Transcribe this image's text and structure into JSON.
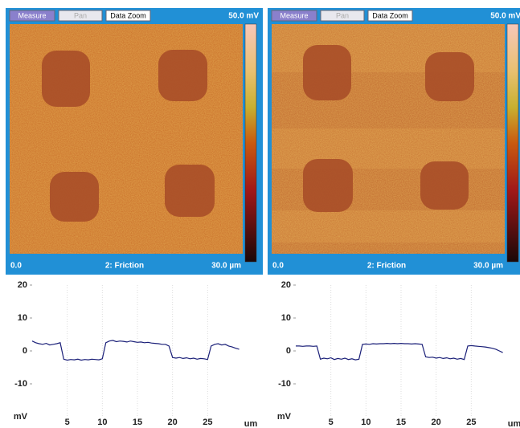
{
  "panels": [
    {
      "buttons": [
        "Measure",
        "Pan",
        "Data Zoom"
      ],
      "scale_max": "50.0 mV",
      "footer_left": "0.0",
      "footer_center": "2: Friction",
      "footer_right": "30.0 µm"
    },
    {
      "buttons": [
        "Measure",
        "Pan",
        "Data Zoom"
      ],
      "scale_max": "50.0 mV",
      "footer_left": "0.0",
      "footer_center": "2: Friction",
      "footer_right": "30.0 µm"
    }
  ],
  "chart_data": [
    {
      "type": "line",
      "xlabel": "um",
      "ylabel": "mV",
      "xlim": [
        0,
        30
      ],
      "ylim": [
        -20,
        20
      ],
      "xticks": [
        5,
        10,
        15,
        20,
        25
      ],
      "yticks": [
        -10,
        0,
        10,
        20
      ],
      "grid": true,
      "x": [
        0,
        0.5,
        1,
        1.5,
        2,
        2.5,
        3,
        3.5,
        4,
        4.5,
        5,
        5.5,
        6,
        6.5,
        7,
        7.5,
        8,
        8.5,
        9,
        9.5,
        10,
        10.5,
        11,
        11.5,
        12,
        12.5,
        13,
        13.5,
        14,
        14.5,
        15,
        15.5,
        16,
        16.5,
        17,
        17.5,
        18,
        18.5,
        19,
        19.5,
        20,
        20.5,
        21,
        21.5,
        22,
        22.5,
        23,
        23.5,
        24,
        24.5,
        25,
        25.5,
        26,
        26.5,
        27,
        27.5,
        28,
        28.5,
        29,
        29.5
      ],
      "series": [
        {
          "color": "#1a1f78",
          "values": [
            3,
            2.5,
            2.2,
            2,
            2.3,
            1.8,
            2,
            2.2,
            2.5,
            -2.5,
            -2.8,
            -2.6,
            -2.7,
            -2.5,
            -2.8,
            -2.6,
            -2.7,
            -2.5,
            -2.6,
            -2.7,
            -2.4,
            2.5,
            3,
            3.2,
            2.8,
            3,
            2.9,
            2.7,
            3,
            2.8,
            2.6,
            2.7,
            2.5,
            2.6,
            2.4,
            2.3,
            2.2,
            2,
            2,
            1.5,
            -2,
            -2.2,
            -2,
            -2.3,
            -2.1,
            -2.4,
            -2.2,
            -2.5,
            -2.3,
            -2.4,
            -2.6,
            1.5,
            2,
            2.2,
            1.8,
            2,
            1.5,
            1.2,
            0.8,
            0.5
          ]
        }
      ]
    },
    {
      "type": "line",
      "xlabel": "um",
      "ylabel": "mV",
      "xlim": [
        0,
        30
      ],
      "ylim": [
        -20,
        20
      ],
      "xticks": [
        5,
        10,
        15,
        20,
        25
      ],
      "yticks": [
        -10,
        0,
        10,
        20
      ],
      "grid": true,
      "x": [
        0,
        0.5,
        1,
        1.5,
        2,
        2.5,
        3,
        3.5,
        4,
        4.5,
        5,
        5.5,
        6,
        6.5,
        7,
        7.5,
        8,
        8.5,
        9,
        9.5,
        10,
        10.5,
        11,
        11.5,
        12,
        12.5,
        13,
        13.5,
        14,
        14.5,
        15,
        15.5,
        16,
        16.5,
        17,
        17.5,
        18,
        18.5,
        19,
        19.5,
        20,
        20.5,
        21,
        21.5,
        22,
        22.5,
        23,
        23.5,
        24,
        24.5,
        25,
        25.5,
        26,
        26.5,
        27,
        27.5,
        28,
        28.5,
        29,
        29.5
      ],
      "series": [
        {
          "color": "#1a1f78",
          "values": [
            1.5,
            1.5,
            1.4,
            1.5,
            1.5,
            1.4,
            1.5,
            -2.5,
            -2.2,
            -2.4,
            -2.1,
            -2.6,
            -2.3,
            -2.5,
            -2.2,
            -2.6,
            -2.4,
            -2.7,
            -2.5,
            2,
            2.1,
            2,
            2.2,
            2.1,
            2.2,
            2.2,
            2.3,
            2.2,
            2.3,
            2.2,
            2.3,
            2.2,
            2.2,
            2.1,
            2.2,
            2.1,
            2,
            -1.8,
            -2,
            -1.9,
            -2.2,
            -2,
            -2.3,
            -2.1,
            -2.4,
            -2.2,
            -2.5,
            -2.3,
            -2.6,
            1.5,
            1.6,
            1.5,
            1.4,
            1.3,
            1.2,
            1,
            0.8,
            0.5,
            0,
            -0.5
          ]
        }
      ]
    }
  ]
}
